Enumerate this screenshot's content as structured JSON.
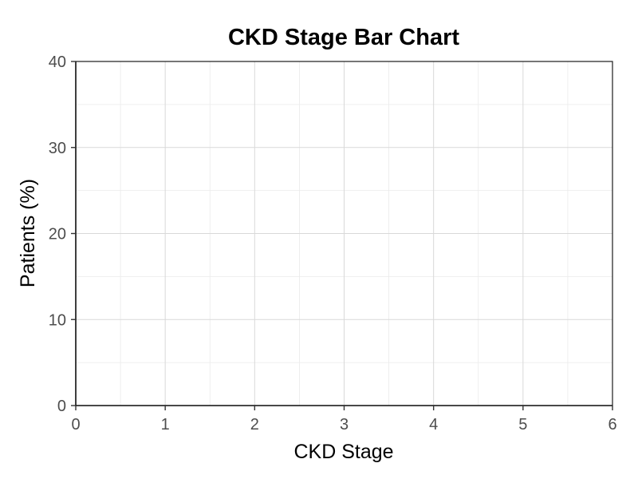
{
  "chart_data": {
    "type": "bar",
    "title": "CKD Stage Bar Chart",
    "xlabel": "CKD Stage",
    "ylabel": "Patients (%)",
    "xlim": [
      0,
      6
    ],
    "ylim": [
      0,
      40
    ],
    "x_ticks": [
      "0",
      "1",
      "2",
      "3",
      "4",
      "5",
      "6"
    ],
    "y_ticks": [
      "0",
      "10",
      "20",
      "30",
      "40"
    ],
    "categories": [],
    "values": [],
    "grid": true,
    "legend": "none"
  }
}
